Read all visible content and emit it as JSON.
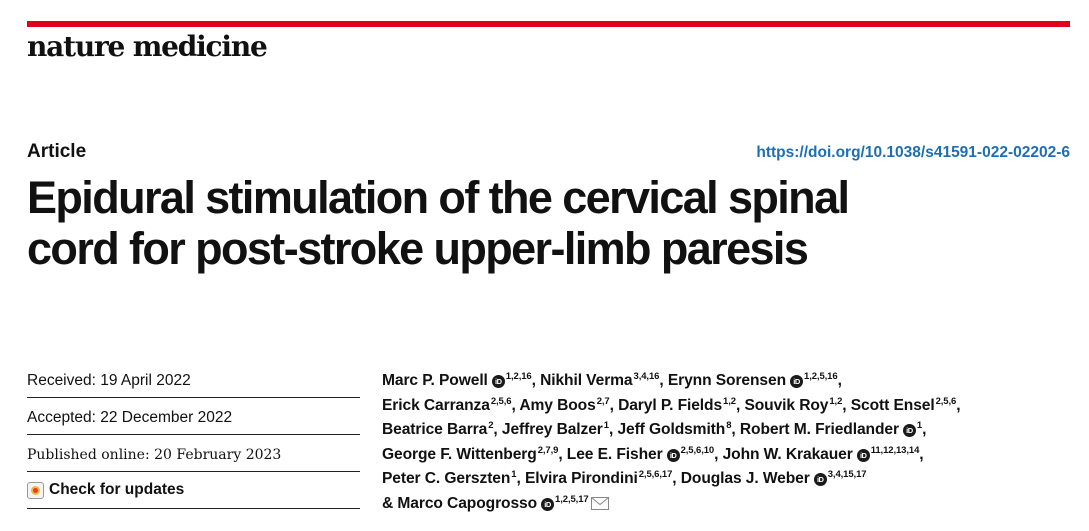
{
  "journal": "nature medicine",
  "article_type": "Article",
  "doi": "https://doi.org/10.1038/s41591-022-02202-6",
  "title_lines": [
    "Epidural stimulation of the cervical spinal",
    "cord for post-stroke upper-limb paresis"
  ],
  "dates": {
    "received": "Received: 19 April 2022",
    "accepted": "Accepted: 22 December 2022",
    "published": "Published online: 20 February 2023",
    "check_updates": "Check for updates"
  },
  "orcid_glyph": "iD",
  "authors": {
    "a1": {
      "name": "Marc P. Powell",
      "sup": "1,2,16"
    },
    "a2": {
      "name": "Nikhil Verma",
      "sup": "3,4,16"
    },
    "a3": {
      "name": "Erynn Sorensen",
      "sup": "1,2,5,16"
    },
    "a4": {
      "name": "Erick Carranza",
      "sup": "2,5,6"
    },
    "a5": {
      "name": "Amy Boos",
      "sup": "2,7"
    },
    "a6": {
      "name": "Daryl P. Fields",
      "sup": "1,2"
    },
    "a7": {
      "name": "Souvik Roy",
      "sup": "1,2"
    },
    "a8": {
      "name": "Scott Ensel",
      "sup": "2,5,6"
    },
    "a9": {
      "name": "Beatrice Barra",
      "sup": "2"
    },
    "a10": {
      "name": "Jeffrey Balzer",
      "sup": "1"
    },
    "a11": {
      "name": "Jeff Goldsmith",
      "sup": "8"
    },
    "a12": {
      "name": "Robert M. Friedlander",
      "sup": "1"
    },
    "a13": {
      "name": "George F. Wittenberg",
      "sup": "2,7,9"
    },
    "a14": {
      "name": "Lee E. Fisher",
      "sup": "2,5,6,10"
    },
    "a15": {
      "name": "John W. Krakauer",
      "sup": "11,12,13,14"
    },
    "a16": {
      "name": "Peter C. Gerszten",
      "sup": "1"
    },
    "a17": {
      "name": "Elvira Pirondini",
      "sup": "2,5,6,17"
    },
    "a18": {
      "name": "Douglas J. Weber",
      "sup": "3,4,15,17"
    },
    "a19": {
      "name": "& Marco Capogrosso",
      "sup": "1,2,5,17"
    }
  },
  "colors": {
    "accent_bar": "#e0001b",
    "doi_link": "#1d6fb5"
  }
}
